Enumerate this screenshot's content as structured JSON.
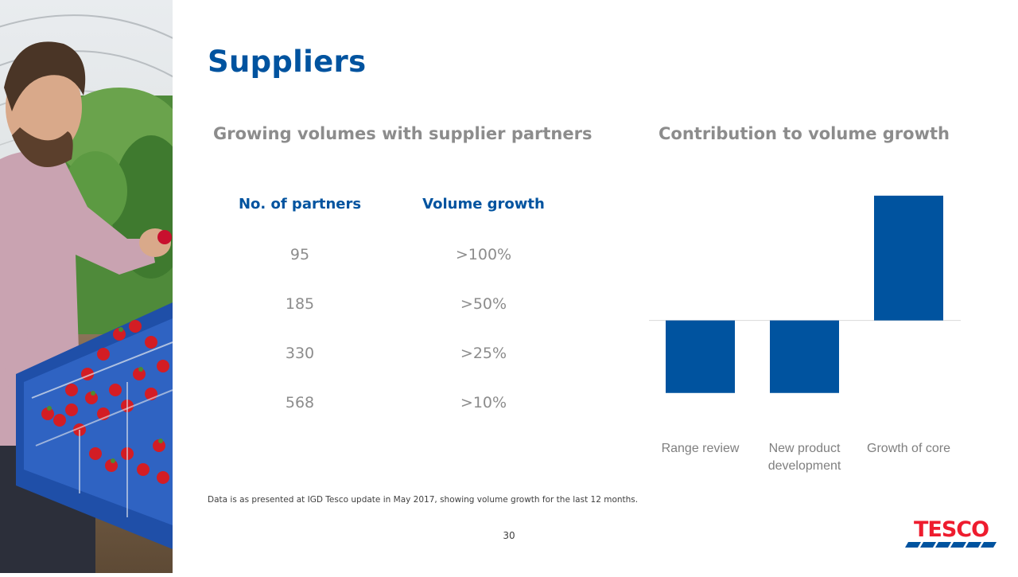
{
  "slide": {
    "title": "Suppliers",
    "page_number": "30",
    "footnote": "Data is as presented at IGD Tesco update in May 2017, showing volume growth for the last 12 months."
  },
  "left_section": {
    "heading": "Growing volumes with supplier partners",
    "table": {
      "headers": [
        "No. of partners",
        "Volume growth"
      ],
      "rows": [
        [
          "95",
          ">100%"
        ],
        [
          "185",
          ">50%"
        ],
        [
          "330",
          ">25%"
        ],
        [
          "568",
          ">10%"
        ]
      ]
    }
  },
  "right_section": {
    "heading": "Contribution to volume growth"
  },
  "chart_data": {
    "type": "bar",
    "categories": [
      "Range review",
      "New product development",
      "Growth of core"
    ],
    "category_label_lines": [
      [
        "Range review"
      ],
      [
        "New product",
        "development"
      ],
      [
        "Growth of core"
      ]
    ],
    "values": [
      -1.0,
      -1.0,
      1.72
    ],
    "ylim": [
      -1.2,
      1.85
    ],
    "grid": false,
    "legend": "none",
    "bar_color": "#00539F",
    "axis_color": "#d9d9d9"
  },
  "logo": {
    "text": "TESCO",
    "text_color": "#EE1C2E",
    "stripe_color": "#00539F"
  },
  "photo": {
    "subject": "man-holding-strawberry-crate"
  }
}
